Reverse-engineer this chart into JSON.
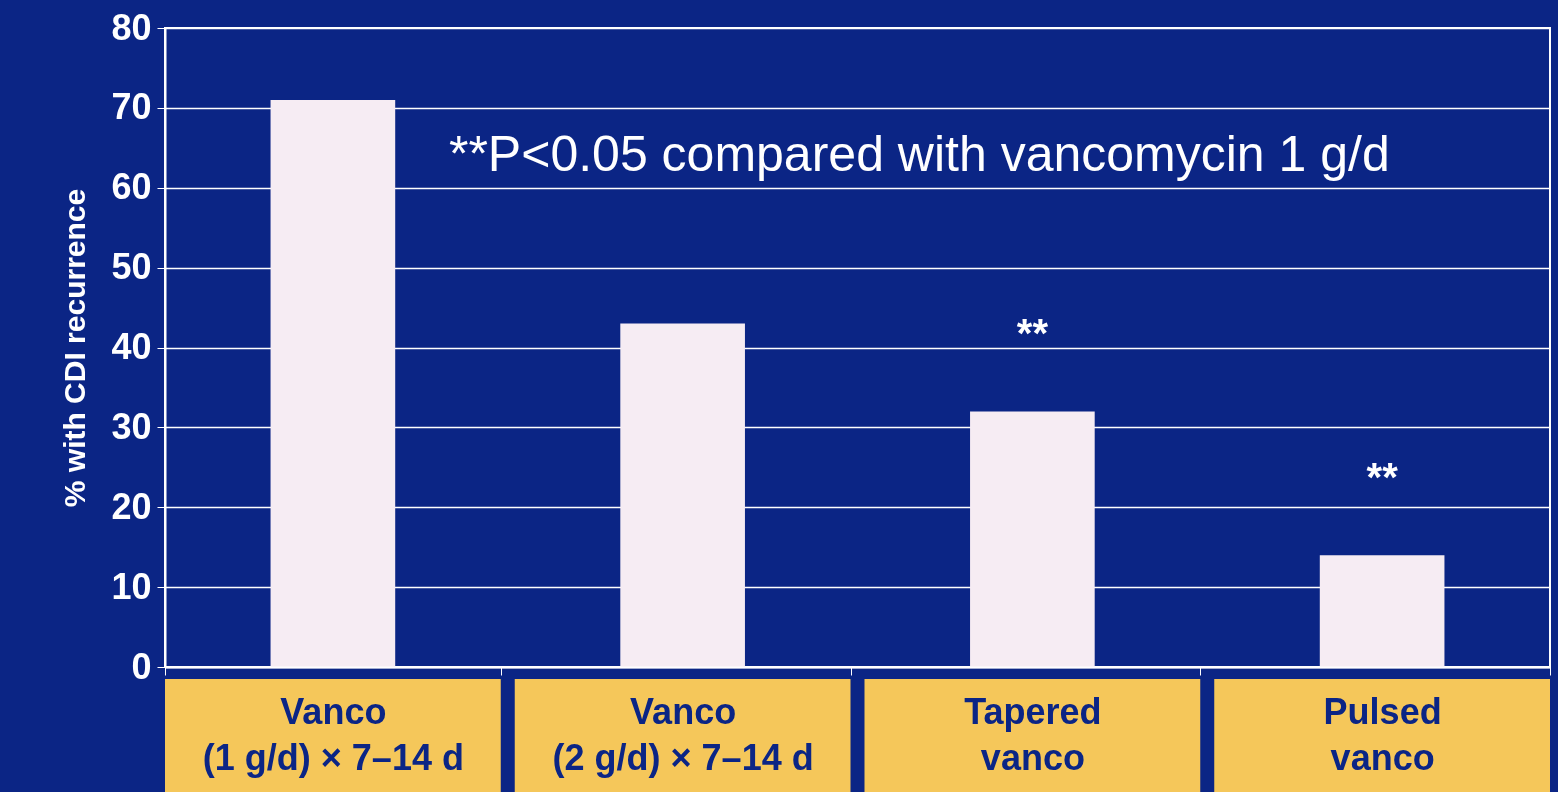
{
  "chart_data": {
    "type": "bar",
    "ylabel": "% with CDI recurrence",
    "categories": [
      "Vanco (1 g/d) × 7–14 d",
      "Vanco (2 g/d) × 7–14 d",
      "Tapered vanco",
      "Pulsed vanco"
    ],
    "values": [
      71,
      43,
      32,
      14
    ],
    "color": "#f6ecf3",
    "ylim": [
      0,
      80
    ],
    "yticks": [
      0,
      10,
      20,
      30,
      40,
      50,
      60,
      70,
      80
    ],
    "grid": "y",
    "annotations": [
      "**P<0.05 compared with vancomycin 1 g/d",
      {
        "text": "**",
        "x": "Tapered vanco",
        "y": 32
      },
      {
        "text": "**",
        "x": "Pulsed vanco",
        "y": 14
      }
    ]
  }
}
